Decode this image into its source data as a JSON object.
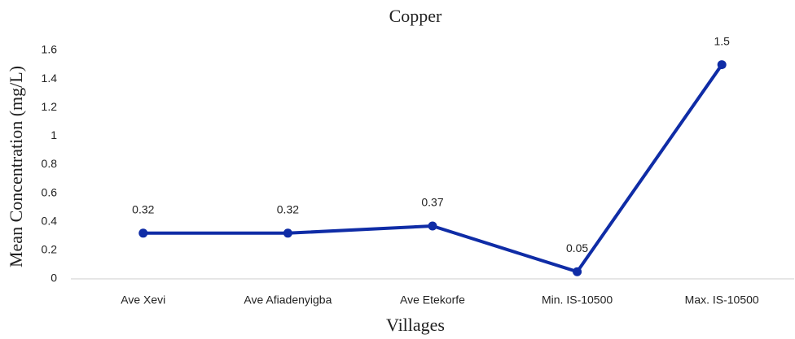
{
  "chart_data": {
    "type": "line",
    "title": "Copper",
    "x_label": "Villages",
    "y_label": "Mean Concentration (mg/L)",
    "categories": [
      "Ave Xevi",
      "Ave Afiadenyigba",
      "Ave Etekorfe",
      "Min. IS-10500",
      "Max. IS-10500"
    ],
    "series": [
      {
        "name": "Copper",
        "color": "#0f2ca6",
        "values": [
          0.32,
          0.32,
          0.37,
          0.05,
          1.5
        ]
      }
    ],
    "ylim": [
      0,
      1.6
    ],
    "yticks": [
      0,
      0.2,
      0.4,
      0.6,
      0.8,
      1,
      1.2,
      1.4,
      1.6
    ],
    "grid": false,
    "data_labels": true
  }
}
